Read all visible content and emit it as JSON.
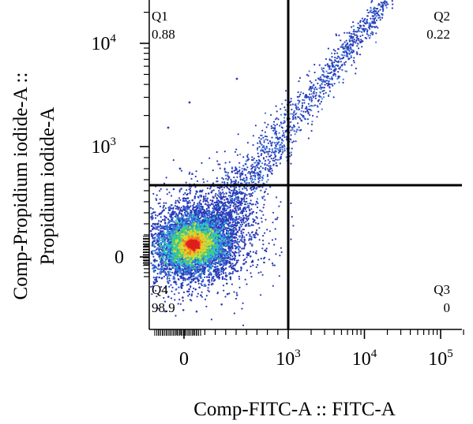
{
  "chart_data": {
    "type": "scatter",
    "subtype": "flow-cytometry-density-dot-plot",
    "xlabel": "Comp-FITC-A :: FITC-A",
    "ylabel_lines": [
      "Comp-Propidium iodide-A ::",
      "Propidium iodide-A"
    ],
    "x_axis": {
      "scale": "biexponential",
      "ticks": [
        {
          "value": 0,
          "base": "0",
          "exp": ""
        },
        {
          "value": 1000,
          "base": "10",
          "exp": "3"
        },
        {
          "value": 10000,
          "base": "10",
          "exp": "4"
        },
        {
          "value": 100000,
          "base": "10",
          "exp": "5"
        }
      ]
    },
    "y_axis": {
      "scale": "biexponential",
      "ticks": [
        {
          "value": 0,
          "base": "0",
          "exp": ""
        },
        {
          "value": 1000,
          "base": "10",
          "exp": "3"
        },
        {
          "value": 10000,
          "base": "10",
          "exp": "4"
        }
      ]
    },
    "gate": {
      "x": 1000,
      "y": 650
    },
    "quadrants": [
      {
        "name": "Q1",
        "percent": "0.88",
        "position": "top-left"
      },
      {
        "name": "Q2",
        "percent": "0.22",
        "position": "top-right"
      },
      {
        "name": "Q3",
        "percent": "0",
        "position": "bottom-right"
      },
      {
        "name": "Q4",
        "percent": "98.9",
        "position": "bottom-left"
      }
    ],
    "colormap": [
      "#2a3bb8",
      "#3a7ee0",
      "#2ec4c8",
      "#4ed06a",
      "#c8e23a",
      "#f2c326",
      "#f07a22",
      "#e01e1e"
    ],
    "grid": false,
    "legend": "none"
  }
}
